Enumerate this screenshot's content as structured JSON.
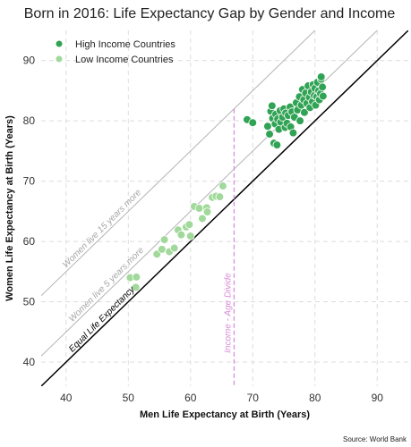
{
  "chart_data": {
    "type": "scatter",
    "title": "Born in 2016: Life Expectancy Gap by Gender and Income",
    "xlabel": "Men Life Expectancy at Birth (Years)",
    "ylabel": "Women Life Expectancy at Birth (Years)",
    "xlim": [
      36,
      95
    ],
    "ylim": [
      36,
      95
    ],
    "xticks": [
      40,
      50,
      60,
      70,
      80,
      90
    ],
    "yticks": [
      40,
      50,
      60,
      70,
      80,
      90
    ],
    "grid": true,
    "legend_position": "top-left",
    "source": "Source: World Bank",
    "series": [
      {
        "name": "High Income Countries",
        "color": "#31a354",
        "points": [
          [
            69.1,
            80.2
          ],
          [
            70.0,
            79.7
          ],
          [
            72.4,
            79.1
          ],
          [
            72.7,
            77.8
          ],
          [
            72.9,
            81.6
          ],
          [
            73.1,
            82.5
          ],
          [
            73.2,
            80.4
          ],
          [
            73.4,
            76.3
          ],
          [
            73.6,
            79.5
          ],
          [
            73.7,
            81.1
          ],
          [
            73.9,
            76.0
          ],
          [
            74.0,
            80.3
          ],
          [
            74.2,
            78.6
          ],
          [
            74.4,
            81.7
          ],
          [
            74.5,
            79.8
          ],
          [
            74.8,
            80.6
          ],
          [
            75.0,
            82.0
          ],
          [
            75.2,
            78.9
          ],
          [
            75.3,
            81.3
          ],
          [
            75.5,
            79.6
          ],
          [
            75.7,
            80.9
          ],
          [
            76.0,
            82.3
          ],
          [
            76.1,
            79.0
          ],
          [
            76.3,
            81.5
          ],
          [
            76.5,
            78.0
          ],
          [
            76.7,
            80.6
          ],
          [
            77.0,
            83.0
          ],
          [
            77.2,
            81.8
          ],
          [
            77.5,
            84.0
          ],
          [
            77.6,
            80.0
          ],
          [
            77.8,
            82.6
          ],
          [
            78.0,
            85.2
          ],
          [
            78.2,
            83.5
          ],
          [
            78.3,
            81.4
          ],
          [
            78.5,
            84.6
          ],
          [
            78.7,
            82.9
          ],
          [
            78.9,
            85.8
          ],
          [
            79.1,
            83.9
          ],
          [
            79.2,
            82.2
          ],
          [
            79.4,
            84.8
          ],
          [
            79.6,
            83.2
          ],
          [
            79.7,
            86.0
          ],
          [
            79.9,
            84.2
          ],
          [
            80.0,
            85.4
          ],
          [
            80.1,
            82.6
          ],
          [
            80.3,
            84.0
          ],
          [
            80.4,
            86.4
          ],
          [
            80.6,
            85.0
          ],
          [
            80.7,
            83.5
          ],
          [
            80.9,
            84.5
          ],
          [
            81.0,
            86.9
          ],
          [
            81.2,
            85.6
          ],
          [
            81.3,
            84.1
          ],
          [
            81.0,
            87.3
          ]
        ]
      },
      {
        "name": "Low Income Countries",
        "color": "#a1d99b",
        "points": [
          [
            50.3,
            54.0
          ],
          [
            51.2,
            52.4
          ],
          [
            51.3,
            54.1
          ],
          [
            54.6,
            57.9
          ],
          [
            55.4,
            58.7
          ],
          [
            55.8,
            60.3
          ],
          [
            56.6,
            58.3
          ],
          [
            57.4,
            58.9
          ],
          [
            58.0,
            61.9
          ],
          [
            58.5,
            61.1
          ],
          [
            59.3,
            62.4
          ],
          [
            59.8,
            62.8
          ],
          [
            60.0,
            60.9
          ],
          [
            60.6,
            65.8
          ],
          [
            61.4,
            65.5
          ],
          [
            61.9,
            63.8
          ],
          [
            62.6,
            65.6
          ],
          [
            62.7,
            64.9
          ],
          [
            63.5,
            67.3
          ],
          [
            64.1,
            67.5
          ],
          [
            64.7,
            67.4
          ],
          [
            65.2,
            69.2
          ]
        ]
      }
    ],
    "reference_lines": [
      {
        "label": "Equal Life Expectancy",
        "offset": 0,
        "color": "#000000"
      },
      {
        "label": "Women live 5 years more",
        "offset": 5,
        "color": "#b3b3b3"
      },
      {
        "label": "Women live 15 years more",
        "offset": 15,
        "color": "#b3b3b3"
      }
    ],
    "divide_line": {
      "label": "Income - Age Divide",
      "x": 67,
      "color": "#d98ed9"
    }
  }
}
